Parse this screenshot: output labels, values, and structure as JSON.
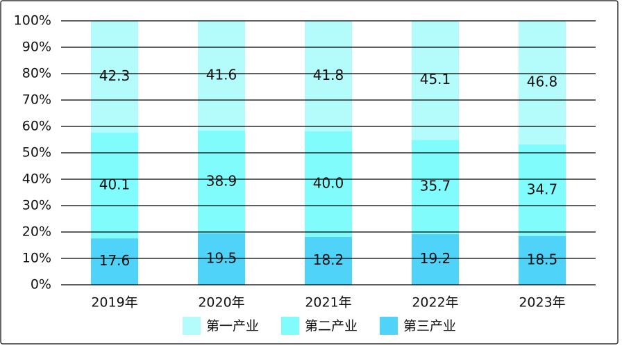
{
  "chart_data": {
    "type": "stacked_bar",
    "categories": [
      "2019年",
      "2020年",
      "2021年",
      "2022年",
      "2023年"
    ],
    "series": [
      {
        "name": "第一产业",
        "color": "#b4fcfc",
        "values": [
          42.3,
          41.6,
          41.8,
          45.1,
          46.8
        ],
        "value_labels": [
          "42.3",
          "41.6",
          "41.8",
          "45.1",
          "46.8"
        ]
      },
      {
        "name": "第二产业",
        "color": "#80fcfc",
        "values": [
          40.1,
          38.9,
          40.0,
          35.7,
          34.7
        ],
        "value_labels": [
          "40.1",
          "38.9",
          "40.0",
          "35.7",
          "34.7"
        ]
      },
      {
        "name": "第三产业",
        "color": "#4fd3f8",
        "values": [
          17.6,
          19.5,
          18.2,
          19.2,
          18.5
        ],
        "value_labels": [
          "17.6",
          "19.5",
          "18.2",
          "19.2",
          "18.5"
        ]
      }
    ],
    "ylim": [
      0,
      100
    ],
    "yticks": [
      {
        "value": 0,
        "label": "0%"
      },
      {
        "value": 10,
        "label": "10%"
      },
      {
        "value": 20,
        "label": "20%"
      },
      {
        "value": 30,
        "label": "30%"
      },
      {
        "value": 40,
        "label": "40%"
      },
      {
        "value": 50,
        "label": "50%"
      },
      {
        "value": 60,
        "label": "60%"
      },
      {
        "value": 70,
        "label": "70%"
      },
      {
        "value": 80,
        "label": "80%"
      },
      {
        "value": 90,
        "label": "90%"
      },
      {
        "value": 100,
        "label": "100%"
      }
    ],
    "grid": true
  }
}
